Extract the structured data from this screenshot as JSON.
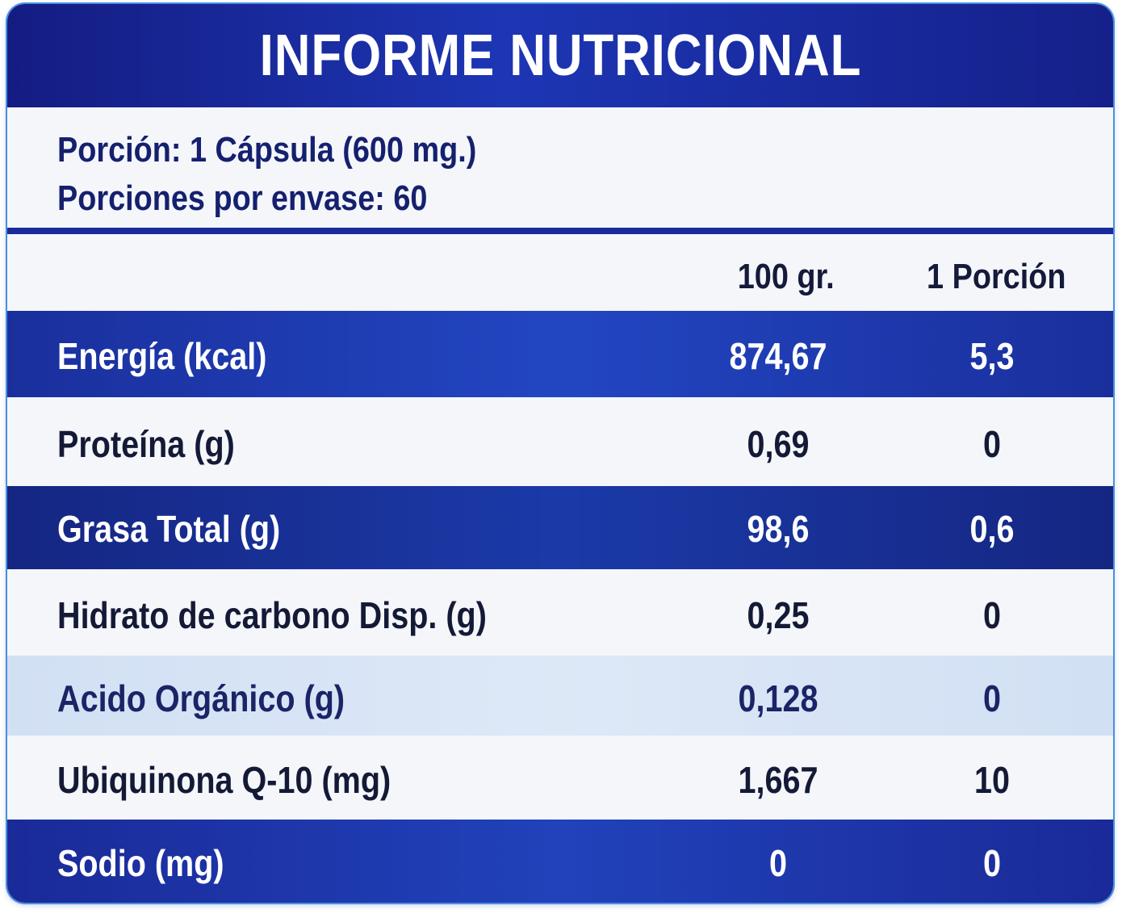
{
  "title": "INFORME NUTRICIONAL",
  "serving": {
    "portion": "Porción: 1 Cápsula (600 mg.)",
    "servings_per_container": "Porciones por envase: 60"
  },
  "columns": {
    "per_100": "100 gr.",
    "per_portion": "1 Porción"
  },
  "rows": [
    {
      "name": "Energía (kcal)",
      "per_100": "874,67",
      "per_portion": "5,3"
    },
    {
      "name": "Proteína (g)",
      "per_100": "0,69",
      "per_portion": "0"
    },
    {
      "name": "Grasa Total (g)",
      "per_100": "98,6",
      "per_portion": "0,6"
    },
    {
      "name": "Hidrato de carbono Disp. (g)",
      "per_100": "0,25",
      "per_portion": "0"
    },
    {
      "name": "Acido Orgánico (g)",
      "per_100": "0,128",
      "per_portion": "0"
    },
    {
      "name": "Ubiquinona Q-10 (mg)",
      "per_100": "1,667",
      "per_portion": "10"
    },
    {
      "name": "Sodio (mg)",
      "per_100": "0",
      "per_portion": "0"
    }
  ],
  "colors": {
    "header": "#1a2a9a",
    "band_dark": "#1b2e9e",
    "band_light": "#d6e3f5",
    "band_white": "#f4f6fa"
  }
}
